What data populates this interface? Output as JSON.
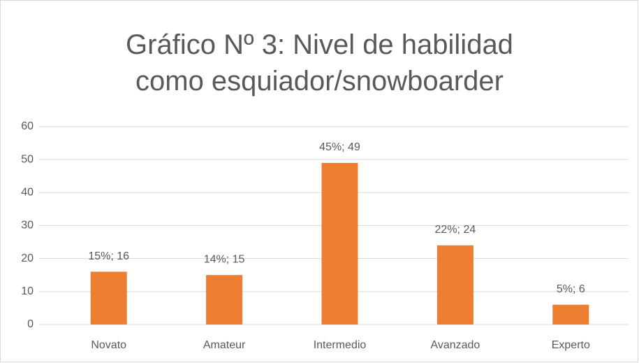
{
  "chart_data": {
    "type": "bar",
    "title": "Gráfico Nº 3: Nivel de habilidad como esquiador/snowboarder",
    "categories": [
      "Novato",
      "Amateur",
      "Intermedio",
      "Avanzado",
      "Experto"
    ],
    "values": [
      16,
      15,
      49,
      24,
      6
    ],
    "value_labels": [
      "15%; 16",
      "14%; 15",
      "45%; 49",
      "22%; 24",
      "5%; 6"
    ],
    "color": "#ed7d31",
    "ylim": [
      0,
      60
    ],
    "yticks": [
      0,
      10,
      20,
      30,
      40,
      50,
      60
    ],
    "grid": true
  }
}
